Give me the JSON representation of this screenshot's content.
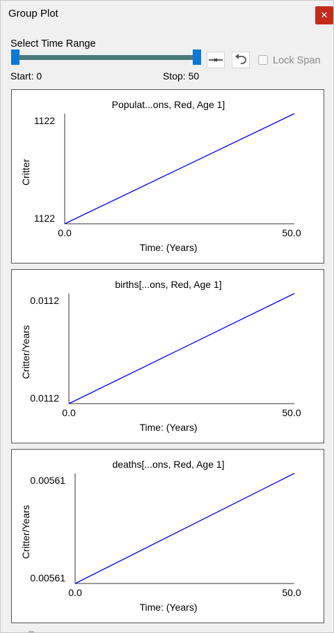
{
  "window": {
    "title": "Group Plot",
    "close_glyph": "✕"
  },
  "controls": {
    "range_label": "Select Time Range",
    "start_label": "Start: 0",
    "stop_label": "Stop: 50",
    "lock_label": "Lock Span",
    "lock_checked": false,
    "slider_start": 0,
    "slider_stop": 50,
    "slider_max": 50,
    "accent_color": "#0a78d4",
    "track_color": "#4a7a7a"
  },
  "chart_data": [
    {
      "type": "line",
      "title": "Populat...ons, Red, Age 1]",
      "xlabel": "Time: (Years)",
      "ylabel": "Critter",
      "x_ticks": [
        "0.0",
        "50.0"
      ],
      "y_ticks": [
        "1122",
        "1122"
      ],
      "xlim": [
        0,
        50
      ],
      "series": [
        {
          "color": "#0000ff",
          "x": [
            0,
            50
          ],
          "y": [
            1122,
            1122
          ]
        }
      ],
      "grid": false
    },
    {
      "type": "line",
      "title": "births[...ons, Red, Age 1]",
      "xlabel": "Time: (Years)",
      "ylabel": "Critter/Years",
      "x_ticks": [
        "0.0",
        "50.0"
      ],
      "y_ticks": [
        "0.0112",
        "0.0112"
      ],
      "xlim": [
        0,
        50
      ],
      "series": [
        {
          "color": "#0000ff",
          "x": [
            0,
            50
          ],
          "y": [
            0.0112,
            0.0112
          ]
        }
      ],
      "grid": false
    },
    {
      "type": "line",
      "title": "deaths[...ons, Red, Age 1]",
      "xlabel": "Time: (Years)",
      "ylabel": "Critter/Years",
      "x_ticks": [
        "0.0",
        "50.0"
      ],
      "y_ticks": [
        "0.00561",
        "0.00561"
      ],
      "xlim": [
        0,
        50
      ],
      "series": [
        {
          "color": "#0000ff",
          "x": [
            0,
            50
          ],
          "y": [
            0.00561,
            0.00561
          ]
        }
      ],
      "grid": false
    }
  ]
}
